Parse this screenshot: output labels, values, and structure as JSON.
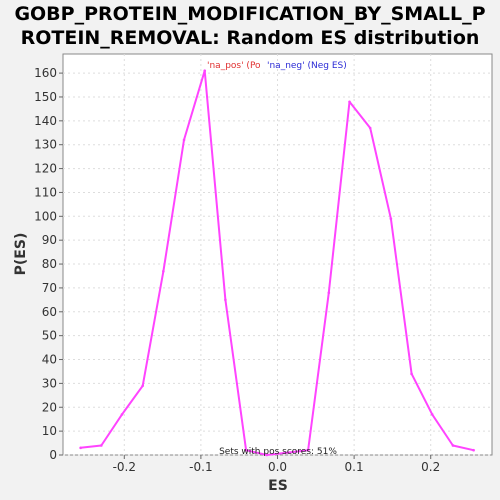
{
  "chart_data": {
    "type": "line",
    "title_lines": [
      "GOBP_PROTEIN_MODIFICATION_BY_SMALL_P",
      "ROTEIN_REMOVAL: Random ES distribution"
    ],
    "xlabel": "ES",
    "ylabel": "P(ES)",
    "xlim": [
      -0.28,
      0.28
    ],
    "ylim": [
      0,
      168
    ],
    "xticks": [
      -0.2,
      -0.1,
      0.0,
      0.1,
      0.2
    ],
    "xtick_labels": [
      "-0.2",
      "-0.1",
      "0.0",
      "0.1",
      "0.2"
    ],
    "yticks": [
      0,
      10,
      20,
      30,
      40,
      50,
      60,
      70,
      80,
      90,
      100,
      110,
      120,
      130,
      140,
      150,
      160
    ],
    "grid": true,
    "legend": {
      "placement": "top-center",
      "entries": [
        {
          "label": "'na_pos' (Po",
          "color": "#e03030"
        },
        {
          "label": "'na_neg' (Neg ES)",
          "color": "#2b2bd6"
        }
      ]
    },
    "annotation": "Sets with pos scores: 51%",
    "series": [
      {
        "color": "#ff44ff",
        "x": [
          -0.257,
          -0.23,
          -0.203,
          -0.176,
          -0.149,
          -0.122,
          -0.095,
          -0.068,
          -0.041,
          -0.014,
          0.013,
          0.04,
          0.067,
          0.094,
          0.121,
          0.148,
          0.175,
          0.202,
          0.229,
          0.256
        ],
        "y": [
          3,
          4,
          17,
          29,
          77,
          132,
          161,
          65,
          2,
          0,
          1,
          2,
          68,
          148,
          137,
          99,
          34,
          17,
          4,
          2
        ]
      }
    ]
  }
}
